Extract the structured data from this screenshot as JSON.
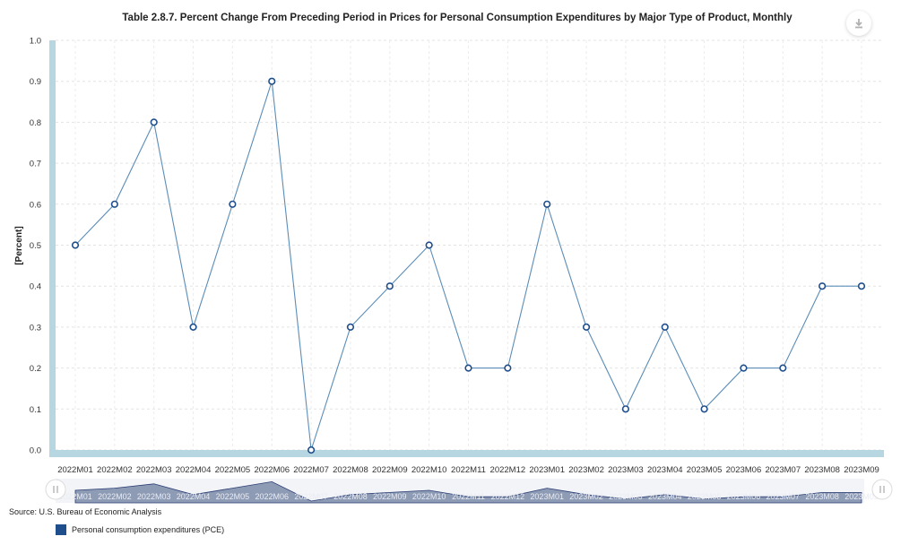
{
  "chart_data": {
    "type": "line",
    "title": "Table 2.8.7. Percent Change From Preceding Period in Prices for Personal Consumption Expenditures by Major Type of Product, Monthly",
    "ylabel": "[Percent]",
    "xlabel": "",
    "ylim": [
      0,
      1.0
    ],
    "yticks": [
      "0.0",
      "0.1",
      "0.2",
      "0.3",
      "0.4",
      "0.5",
      "0.6",
      "0.7",
      "0.8",
      "0.9",
      "1.0"
    ],
    "categories": [
      "2022M01",
      "2022M02",
      "2022M03",
      "2022M04",
      "2022M05",
      "2022M06",
      "2022M07",
      "2022M08",
      "2022M09",
      "2022M10",
      "2022M11",
      "2022M12",
      "2023M01",
      "2023M02",
      "2023M03",
      "2023M04",
      "2023M05",
      "2023M06",
      "2023M07",
      "2023M08",
      "2023M09"
    ],
    "series": [
      {
        "name": "Personal consumption expenditures (PCE)",
        "values": [
          0.5,
          0.6,
          0.8,
          0.3,
          0.6,
          0.9,
          0.0,
          0.3,
          0.4,
          0.5,
          0.2,
          0.2,
          0.6,
          0.3,
          0.1,
          0.3,
          0.1,
          0.2,
          0.2,
          0.4,
          0.4
        ],
        "color": "#5b8db8"
      }
    ],
    "grid": true,
    "legend": "bottom-left"
  },
  "source_text": "Source: U.S. Bureau of Economic Analysis",
  "download_icon": "download-icon",
  "colors": {
    "line": "#5b8db8",
    "axis_band": "#b6d7e2",
    "legend_swatch": "#1f4e8c",
    "navigator_fill": "#8e9bb5"
  }
}
